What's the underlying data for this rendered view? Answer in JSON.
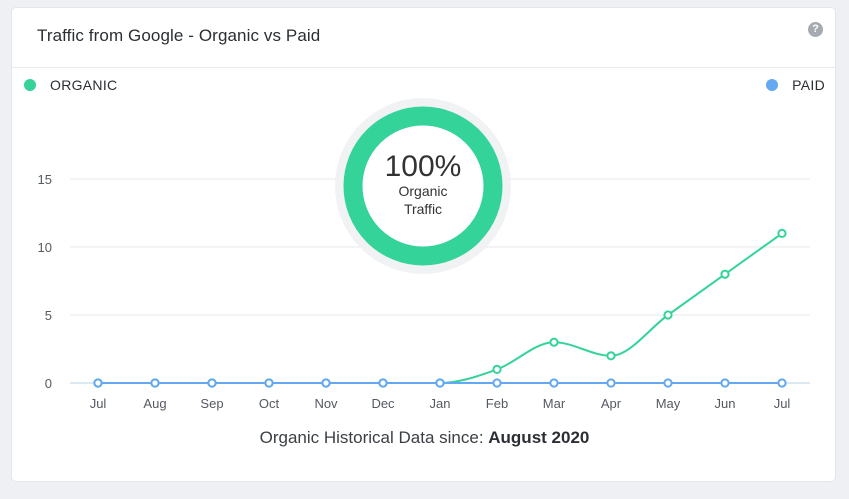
{
  "header": {
    "title": "Traffic from Google - Organic vs Paid",
    "help_icon": "question-circle-icon"
  },
  "legend": {
    "organic_label": "ORGANIC",
    "paid_label": "PAID"
  },
  "colors": {
    "organic": "#34d399",
    "paid": "#64a8f2",
    "grid": "#e6e8eb",
    "axis": "#b8d0e6"
  },
  "donut": {
    "percent_label": "100%",
    "line1": "Organic",
    "line2": "Traffic",
    "organic_share": 1.0
  },
  "footer": {
    "prefix": "Organic Historical Data since: ",
    "since": "August 2020"
  },
  "chart_data": {
    "type": "line",
    "categories": [
      "Jul",
      "Aug",
      "Sep",
      "Oct",
      "Nov",
      "Dec",
      "Jan",
      "Feb",
      "Mar",
      "Apr",
      "May",
      "Jun",
      "Jul"
    ],
    "series": [
      {
        "name": "ORGANIC",
        "values": [
          0,
          0,
          0,
          0,
          0,
          0,
          0,
          1,
          3,
          2,
          5,
          8,
          11
        ]
      },
      {
        "name": "PAID",
        "values": [
          0,
          0,
          0,
          0,
          0,
          0,
          0,
          0,
          0,
          0,
          0,
          0,
          0
        ]
      }
    ],
    "yticks": [
      0,
      5,
      10,
      15
    ],
    "ylim": [
      0,
      15
    ],
    "grid": true,
    "legend_position": "top"
  }
}
